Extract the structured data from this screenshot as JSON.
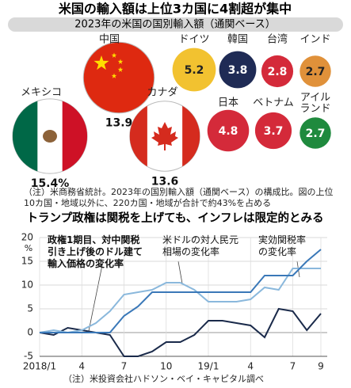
{
  "chart_data": [
    {
      "type": "bubble",
      "title": "米国の輸入額は上位3カ国に4割超が集中",
      "subtitle": "2023年の米国の国別輸入額（通関ベース）",
      "categories": [
        "中国",
        "メキシコ",
        "カナダ",
        "ドイツ",
        "韓国",
        "台湾",
        "インド",
        "日本",
        "ベトナム",
        "アイルランド"
      ],
      "values": [
        13.9,
        15.4,
        13.6,
        5.2,
        3.8,
        2.8,
        2.7,
        4.8,
        3.7,
        2.7
      ],
      "value_labels": [
        "13.9",
        "15.4%",
        "13.6",
        "5.2",
        "3.8",
        "2.8",
        "2.7",
        "4.8",
        "3.7",
        "2.7"
      ],
      "colors": [
        "#de2910",
        "#ffffff",
        "#ffffff",
        "#f2c230",
        "#1f2b55",
        "#d42a3a",
        "#e0913a",
        "#d42a3a",
        "#d42a3a",
        "#1f8a3e"
      ],
      "note": "（注）米商務省統計。2023年の国別輸入額（通関ベース）の構成比。図の上位10カ国・地域以外に、220カ国・地域が合計で約43%を占める"
    },
    {
      "type": "line",
      "title": "トランプ政権は関税を上げても、インフレは限定的とみる",
      "categories": [
        "2018/1",
        null,
        null,
        "4",
        null,
        null,
        "7",
        null,
        null,
        "10",
        null,
        null,
        "19/1",
        null,
        null,
        "4",
        null,
        null,
        "7",
        null,
        "9"
      ],
      "ylabel": "%",
      "ylim": [
        -5,
        20
      ],
      "yticks": [
        -5,
        0,
        5,
        10,
        15,
        20
      ],
      "grid": true,
      "series": [
        {
          "name": "政権1期目、対中関税引き上げ後のドル建て輸入価格の変化率",
          "color": "#1a2a4a",
          "values": [
            0,
            -0.5,
            1,
            0.5,
            0,
            -0.5,
            -5,
            -5,
            -4,
            -2,
            -2,
            -0.5,
            2.5,
            2.5,
            2,
            1.5,
            -1,
            5,
            4.5,
            0.5,
            4
          ]
        },
        {
          "name": "米ドルの対人民元相場の変化率",
          "color": "#8ab8dc",
          "values": [
            0,
            0.5,
            0,
            0.5,
            2,
            4.5,
            8,
            8.5,
            9,
            10.5,
            10.5,
            9,
            6.5,
            6.5,
            6.5,
            7,
            9.5,
            9,
            13.5,
            13.5,
            13.5
          ]
        },
        {
          "name": "実効関税率の変化率",
          "color": "#3a78b8",
          "values": [
            0,
            0,
            0,
            0,
            0,
            0,
            3.5,
            5.5,
            8.5,
            8.5,
            8.5,
            8.5,
            8.5,
            8.5,
            8.5,
            8.5,
            12,
            12,
            12,
            15,
            17.5
          ]
        }
      ],
      "note": "（注）米投資会社ハドソン・ベイ・キャピタル調べ"
    }
  ]
}
